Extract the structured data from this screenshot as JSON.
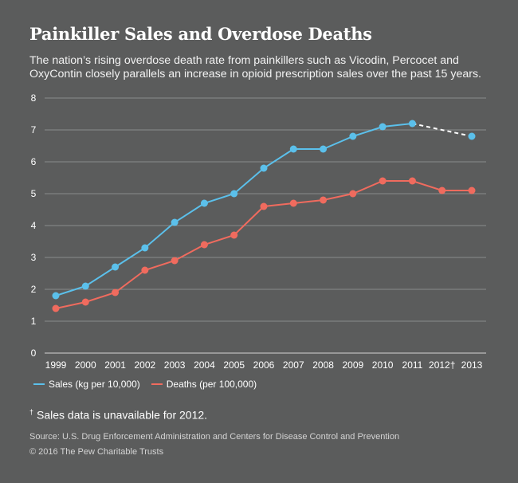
{
  "header": {
    "title": "Painkiller Sales and Overdose Deaths",
    "subtitle": "The nation’s rising overdose death rate from painkillers such as Vicodin, Percocet and OxyContin closely parallels an increase in opioid prescription sales over the past 15 years."
  },
  "chart_data": {
    "type": "line",
    "title": "Painkiller Sales and Overdose Deaths",
    "x": [
      "1999",
      "2000",
      "2001",
      "2002",
      "2003",
      "2004",
      "2005",
      "2006",
      "2007",
      "2008",
      "2009",
      "2010",
      "2011",
      "2012†",
      "2013"
    ],
    "ylim": [
      0,
      8
    ],
    "yticks": [
      0,
      1,
      2,
      3,
      4,
      5,
      6,
      7,
      8
    ],
    "grid": true,
    "legend_position": "bottom-left",
    "series": [
      {
        "name": "Sales (kg per 10,000)",
        "color": "#5bc0eb",
        "values": [
          1.8,
          2.1,
          2.7,
          3.3,
          4.1,
          4.7,
          5.0,
          5.8,
          6.4,
          6.4,
          6.8,
          7.1,
          7.2,
          null,
          6.8
        ],
        "dashed_gap": true
      },
      {
        "name": "Deaths (per 100,000)",
        "color": "#f06b5e",
        "values": [
          1.4,
          1.6,
          1.9,
          2.6,
          2.9,
          3.4,
          3.7,
          4.6,
          4.7,
          4.8,
          5.0,
          5.4,
          5.4,
          5.1,
          5.1
        ],
        "dashed_gap": false
      }
    ]
  },
  "footer": {
    "note_mark": "†",
    "note": "Sales data is unavailable for 2012.",
    "source": "Source: U.S. Drug Enforcement Administration and Centers for Disease Control and Prevention",
    "copyright": "© 2016 The Pew Charitable Trusts"
  }
}
